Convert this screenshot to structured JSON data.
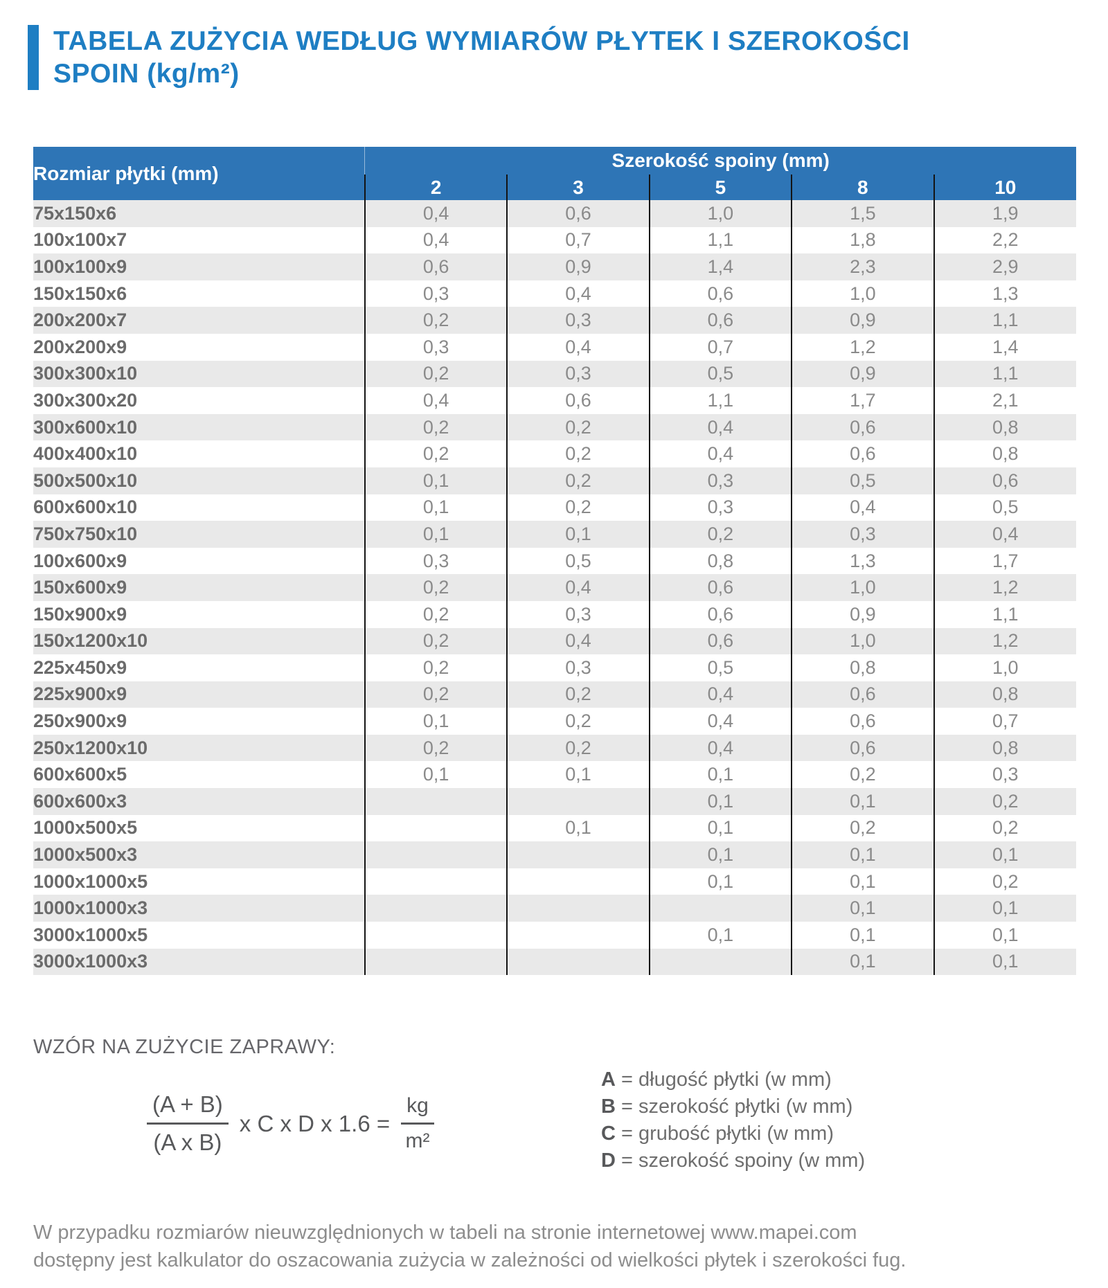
{
  "title": {
    "line1": "TABELA ZUŻYCIA WEDŁUG WYMIARÓW PŁYTEK I SZEROKOŚCI",
    "line2": "SPOIN (kg/m²)"
  },
  "table": {
    "row_header": "Rozmiar płytki (mm)",
    "group_header": "Szerokość spoiny (mm)",
    "joint_widths": [
      "2",
      "3",
      "5",
      "8",
      "10"
    ],
    "rows": [
      {
        "size": "75x150x6",
        "values": [
          "0,4",
          "0,6",
          "1,0",
          "1,5",
          "1,9"
        ]
      },
      {
        "size": "100x100x7",
        "values": [
          "0,4",
          "0,7",
          "1,1",
          "1,8",
          "2,2"
        ]
      },
      {
        "size": "100x100x9",
        "values": [
          "0,6",
          "0,9",
          "1,4",
          "2,3",
          "2,9"
        ]
      },
      {
        "size": "150x150x6",
        "values": [
          "0,3",
          "0,4",
          "0,6",
          "1,0",
          "1,3"
        ]
      },
      {
        "size": "200x200x7",
        "values": [
          "0,2",
          "0,3",
          "0,6",
          "0,9",
          "1,1"
        ]
      },
      {
        "size": "200x200x9",
        "values": [
          "0,3",
          "0,4",
          "0,7",
          "1,2",
          "1,4"
        ]
      },
      {
        "size": "300x300x10",
        "values": [
          "0,2",
          "0,3",
          "0,5",
          "0,9",
          "1,1"
        ]
      },
      {
        "size": "300x300x20",
        "values": [
          "0,4",
          "0,6",
          "1,1",
          "1,7",
          "2,1"
        ]
      },
      {
        "size": "300x600x10",
        "values": [
          "0,2",
          "0,2",
          "0,4",
          "0,6",
          "0,8"
        ]
      },
      {
        "size": "400x400x10",
        "values": [
          "0,2",
          "0,2",
          "0,4",
          "0,6",
          "0,8"
        ]
      },
      {
        "size": "500x500x10",
        "values": [
          "0,1",
          "0,2",
          "0,3",
          "0,5",
          "0,6"
        ]
      },
      {
        "size": "600x600x10",
        "values": [
          "0,1",
          "0,2",
          "0,3",
          "0,4",
          "0,5"
        ]
      },
      {
        "size": "750x750x10",
        "values": [
          "0,1",
          "0,1",
          "0,2",
          "0,3",
          "0,4"
        ]
      },
      {
        "size": "100x600x9",
        "values": [
          "0,3",
          "0,5",
          "0,8",
          "1,3",
          "1,7"
        ]
      },
      {
        "size": "150x600x9",
        "values": [
          "0,2",
          "0,4",
          "0,6",
          "1,0",
          "1,2"
        ]
      },
      {
        "size": "150x900x9",
        "values": [
          "0,2",
          "0,3",
          "0,6",
          "0,9",
          "1,1"
        ]
      },
      {
        "size": "150x1200x10",
        "values": [
          "0,2",
          "0,4",
          "0,6",
          "1,0",
          "1,2"
        ]
      },
      {
        "size": "225x450x9",
        "values": [
          "0,2",
          "0,3",
          "0,5",
          "0,8",
          "1,0"
        ]
      },
      {
        "size": "225x900x9",
        "values": [
          "0,2",
          "0,2",
          "0,4",
          "0,6",
          "0,8"
        ]
      },
      {
        "size": "250x900x9",
        "values": [
          "0,1",
          "0,2",
          "0,4",
          "0,6",
          "0,7"
        ]
      },
      {
        "size": "250x1200x10",
        "values": [
          "0,2",
          "0,2",
          "0,4",
          "0,6",
          "0,8"
        ]
      },
      {
        "size": "600x600x5",
        "values": [
          "0,1",
          "0,1",
          "0,1",
          "0,2",
          "0,3"
        ]
      },
      {
        "size": "600x600x3",
        "values": [
          "",
          "",
          "0,1",
          "0,1",
          "0,2"
        ]
      },
      {
        "size": "1000x500x5",
        "values": [
          "",
          "0,1",
          "0,1",
          "0,2",
          "0,2"
        ]
      },
      {
        "size": "1000x500x3",
        "values": [
          "",
          "",
          "0,1",
          "0,1",
          "0,1"
        ]
      },
      {
        "size": "1000x1000x5",
        "values": [
          "",
          "",
          "0,1",
          "0,1",
          "0,2"
        ]
      },
      {
        "size": "1000x1000x3",
        "values": [
          "",
          "",
          "",
          "0,1",
          "0,1"
        ]
      },
      {
        "size": "3000x1000x5",
        "values": [
          "",
          "",
          "0,1",
          "0,1",
          "0,1"
        ]
      },
      {
        "size": "3000x1000x3",
        "values": [
          "",
          "",
          "",
          "0,1",
          "0,1"
        ]
      }
    ]
  },
  "formula": {
    "heading": "WZÓR NA ZUŻYCIE ZAPRAWY:",
    "numerator": "(A + B)",
    "denominator": "(A x B)",
    "middle": "x C x D x 1.6 =",
    "result_numerator": "kg",
    "result_denominator": "m²",
    "legend": [
      {
        "symbol": "A",
        "text": " = długość płytki (w mm)"
      },
      {
        "symbol": "B",
        "text": " = szerokość płytki (w mm)"
      },
      {
        "symbol": "C",
        "text": " = grubość płytki (w mm)"
      },
      {
        "symbol": "D",
        "text": " = szerokość spoiny (w mm)"
      }
    ]
  },
  "footer_note": {
    "lines": [
      "W przypadku rozmiarów nieuwzględnionych w tabeli na stronie internetowej www.mapei.com",
      "dostępny jest kalkulator do oszacowania zużycia w zależności od wielkości płytek i szerokości fug."
    ]
  },
  "colors": {
    "title_blue": "#1e7ec3",
    "header_blue": "#2e75b6",
    "stripe_gray": "#e9e9e9",
    "label_gray": "#6b6b6b",
    "value_gray": "#8a8a8a",
    "separator_black": "#141414"
  }
}
